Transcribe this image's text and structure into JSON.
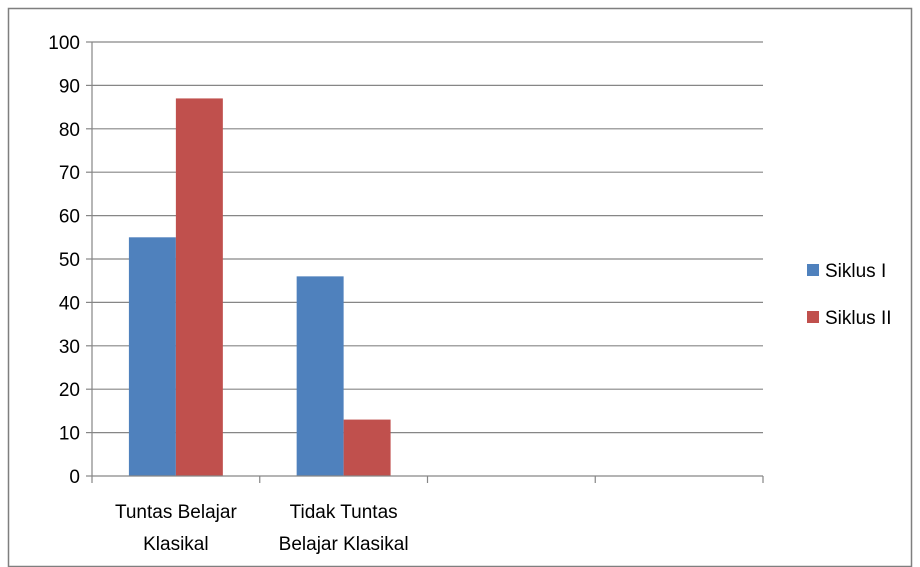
{
  "chart_data": {
    "type": "bar",
    "title": "",
    "xlabel": "",
    "ylabel": "",
    "ylim": [
      0,
      100
    ],
    "yticks": [
      0,
      10,
      20,
      30,
      40,
      50,
      60,
      70,
      80,
      90,
      100
    ],
    "categories": [
      [
        "Tuntas Belajar",
        "Klasikal"
      ],
      [
        "Tidak Tuntas",
        "Belajar Klasikal"
      ],
      [],
      []
    ],
    "series": [
      {
        "name": "Siklus I",
        "color": "#4F81BD",
        "values": [
          55,
          46,
          null,
          null
        ]
      },
      {
        "name": "Siklus II",
        "color": "#C0504D",
        "values": [
          87,
          13,
          null,
          null
        ]
      }
    ],
    "grid": true,
    "legend_position": "right"
  }
}
